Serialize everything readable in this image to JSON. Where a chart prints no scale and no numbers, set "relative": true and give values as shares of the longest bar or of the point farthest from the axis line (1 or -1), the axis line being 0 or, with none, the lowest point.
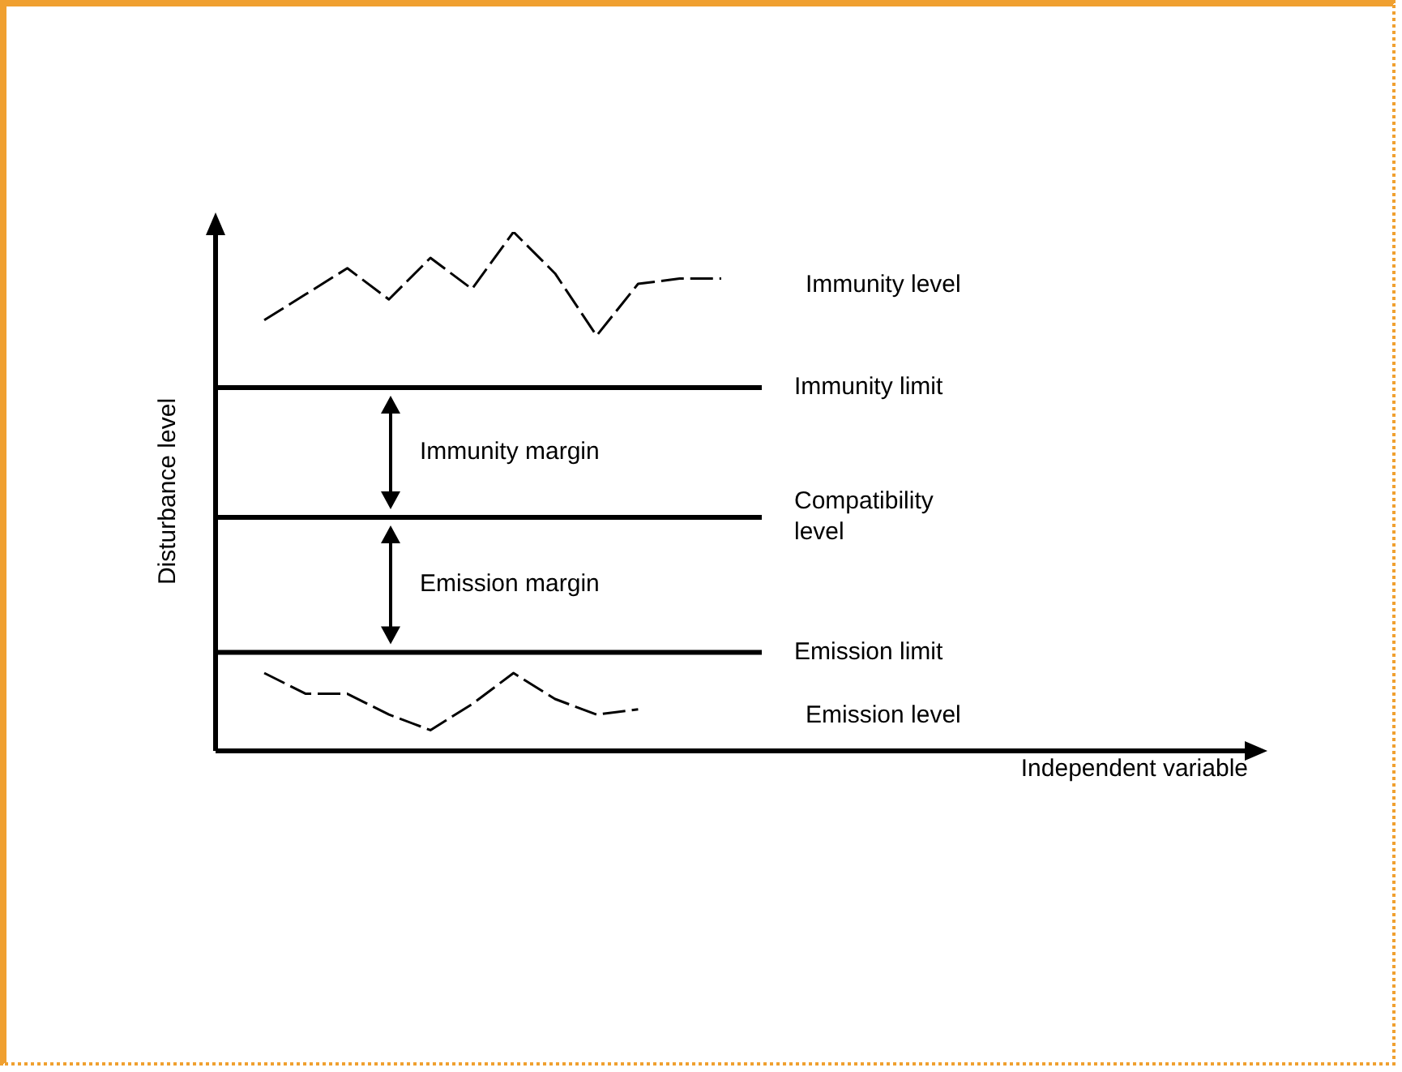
{
  "chart_data": {
    "type": "line",
    "relative": true,
    "ylabel": "Disturbance level",
    "categories": [
      null,
      null,
      null,
      null,
      null,
      null,
      null,
      null,
      null,
      null,
      null,
      null
    ],
    "series": [
      {
        "name": "Immunity level",
        "color": "#000000",
        "values": [
          0.83,
          0.88,
          0.93,
          0.87,
          0.95,
          0.89,
          1,
          0.92,
          0.8,
          0.9,
          0.91,
          0.91
        ]
      },
      {
        "name": "Emission level",
        "color": "#000000",
        "values": [
          0.15,
          0.11,
          0.11,
          0.07,
          0.04,
          0.09,
          0.15,
          0.1,
          0.07,
          0.08,
          null,
          null
        ]
      }
    ],
    "ref_lines": [
      {
        "axis": "y",
        "value": 0.7,
        "label": "Immunity limit",
        "color": "#000000"
      },
      {
        "axis": "y",
        "value": 0.45,
        "label": "Compatibility level",
        "color": "#000000"
      },
      {
        "axis": "y",
        "value": 0.19,
        "label": "Emission limit",
        "color": "#000000"
      }
    ],
    "annotations": [
      "Immunity margin",
      "Emission margin",
      "Independent variable"
    ],
    "grid": false,
    "legend": false,
    "marker": "none",
    "line_style": "dashed"
  }
}
